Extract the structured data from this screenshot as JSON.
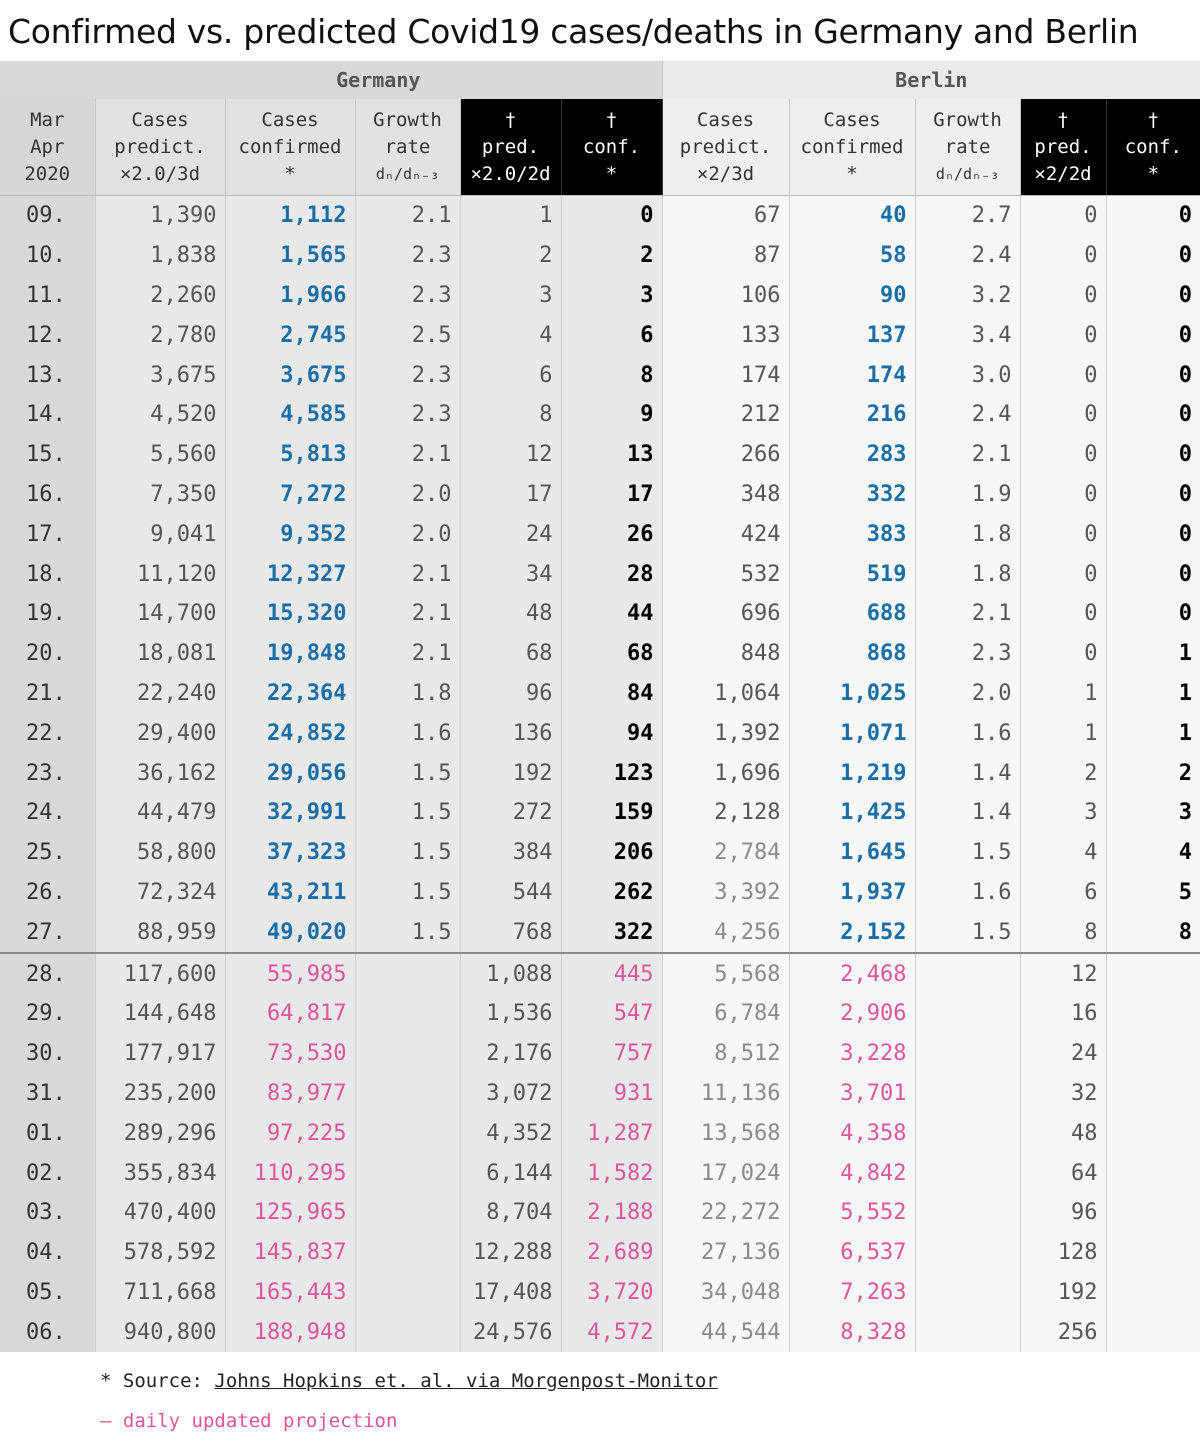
{
  "title": "Confirmed vs. predicted Covid19 cases/deaths in Germany and Berlin",
  "groups": {
    "germany": "Germany",
    "berlin": "Berlin"
  },
  "headers": {
    "date": [
      "Mar",
      "Apr",
      "2020"
    ],
    "de_pred": [
      "Cases",
      "predict.",
      "×2.0/3d"
    ],
    "de_conf": [
      "Cases",
      "confirmed",
      "*"
    ],
    "de_growth": [
      "Growth",
      "rate",
      "dₙ/dₙ₋₃"
    ],
    "de_dpred": [
      "†",
      "pred.",
      "×2.0/2d"
    ],
    "de_dconf": [
      "†",
      "conf.",
      "*"
    ],
    "be_pred": [
      "Cases",
      "predict.",
      "×2/3d"
    ],
    "be_conf": [
      "Cases",
      "confirmed",
      "*"
    ],
    "be_growth": [
      "Growth",
      "rate",
      "dₙ/dₙ₋₃"
    ],
    "be_dpred": [
      "†",
      "pred.",
      "×2/2d"
    ],
    "be_dconf": [
      "†",
      "conf.",
      "*"
    ]
  },
  "rows": [
    [
      "09.",
      "1,390",
      "1,112",
      "2.1",
      "1",
      "0",
      "67",
      "40",
      "2.7",
      "0",
      "0"
    ],
    [
      "10.",
      "1,838",
      "1,565",
      "2.3",
      "2",
      "2",
      "87",
      "58",
      "2.4",
      "0",
      "0"
    ],
    [
      "11.",
      "2,260",
      "1,966",
      "2.3",
      "3",
      "3",
      "106",
      "90",
      "3.2",
      "0",
      "0"
    ],
    [
      "12.",
      "2,780",
      "2,745",
      "2.5",
      "4",
      "6",
      "133",
      "137",
      "3.4",
      "0",
      "0"
    ],
    [
      "13.",
      "3,675",
      "3,675",
      "2.3",
      "6",
      "8",
      "174",
      "174",
      "3.0",
      "0",
      "0"
    ],
    [
      "14.",
      "4,520",
      "4,585",
      "2.3",
      "8",
      "9",
      "212",
      "216",
      "2.4",
      "0",
      "0"
    ],
    [
      "15.",
      "5,560",
      "5,813",
      "2.1",
      "12",
      "13",
      "266",
      "283",
      "2.1",
      "0",
      "0"
    ],
    [
      "16.",
      "7,350",
      "7,272",
      "2.0",
      "17",
      "17",
      "348",
      "332",
      "1.9",
      "0",
      "0"
    ],
    [
      "17.",
      "9,041",
      "9,352",
      "2.0",
      "24",
      "26",
      "424",
      "383",
      "1.8",
      "0",
      "0"
    ],
    [
      "18.",
      "11,120",
      "12,327",
      "2.1",
      "34",
      "28",
      "532",
      "519",
      "1.8",
      "0",
      "0"
    ],
    [
      "19.",
      "14,700",
      "15,320",
      "2.1",
      "48",
      "44",
      "696",
      "688",
      "2.1",
      "0",
      "0"
    ],
    [
      "20.",
      "18,081",
      "19,848",
      "2.1",
      "68",
      "68",
      "848",
      "868",
      "2.3",
      "0",
      "1"
    ],
    [
      "21.",
      "22,240",
      "22,364",
      "1.8",
      "96",
      "84",
      "1,064",
      "1,025",
      "2.0",
      "1",
      "1"
    ],
    [
      "22.",
      "29,400",
      "24,852",
      "1.6",
      "136",
      "94",
      "1,392",
      "1,071",
      "1.6",
      "1",
      "1"
    ],
    [
      "23.",
      "36,162",
      "29,056",
      "1.5",
      "192",
      "123",
      "1,696",
      "1,219",
      "1.4",
      "2",
      "2"
    ],
    [
      "24.",
      "44,479",
      "32,991",
      "1.5",
      "272",
      "159",
      "2,128",
      "1,425",
      "1.4",
      "3",
      "3"
    ],
    [
      "25.",
      "58,800",
      "37,323",
      "1.5",
      "384",
      "206",
      "2,784",
      "1,645",
      "1.5",
      "4",
      "4"
    ],
    [
      "26.",
      "72,324",
      "43,211",
      "1.5",
      "544",
      "262",
      "3,392",
      "1,937",
      "1.6",
      "6",
      "5"
    ],
    [
      "27.",
      "88,959",
      "49,020",
      "1.5",
      "768",
      "322",
      "4,256",
      "2,152",
      "1.5",
      "8",
      "8"
    ],
    [
      "28.",
      "117,600",
      "55,985",
      "",
      "1,088",
      "445",
      "5,568",
      "2,468",
      "",
      "12",
      ""
    ],
    [
      "29.",
      "144,648",
      "64,817",
      "",
      "1,536",
      "547",
      "6,784",
      "2,906",
      "",
      "16",
      ""
    ],
    [
      "30.",
      "177,917",
      "73,530",
      "",
      "2,176",
      "757",
      "8,512",
      "3,228",
      "",
      "24",
      ""
    ],
    [
      "31.",
      "235,200",
      "83,977",
      "",
      "3,072",
      "931",
      "11,136",
      "3,701",
      "",
      "32",
      ""
    ],
    [
      "01.",
      "289,296",
      "97,225",
      "",
      "4,352",
      "1,287",
      "13,568",
      "4,358",
      "",
      "48",
      ""
    ],
    [
      "02.",
      "355,834",
      "110,295",
      "",
      "6,144",
      "1,582",
      "17,024",
      "4,842",
      "",
      "64",
      ""
    ],
    [
      "03.",
      "470,400",
      "125,965",
      "",
      "8,704",
      "2,188",
      "22,272",
      "5,552",
      "",
      "96",
      ""
    ],
    [
      "04.",
      "578,592",
      "145,837",
      "",
      "12,288",
      "2,689",
      "27,136",
      "6,537",
      "",
      "128",
      ""
    ],
    [
      "05.",
      "711,668",
      "165,443",
      "",
      "17,408",
      "3,720",
      "34,048",
      "7,263",
      "",
      "192",
      ""
    ],
    [
      "06.",
      "940,800",
      "188,948",
      "",
      "24,576",
      "4,572",
      "44,544",
      "8,328",
      "",
      "256",
      ""
    ]
  ],
  "footer": {
    "source_prefix": "* Source: ",
    "source_link": "Johns Hopkins et. al. via Morgenpost-Monitor",
    "projection_note": "– daily updated projection"
  },
  "colors": {
    "confirmed": "#1a6ea8",
    "projection": "#e0559a",
    "deaths": "#000000"
  }
}
